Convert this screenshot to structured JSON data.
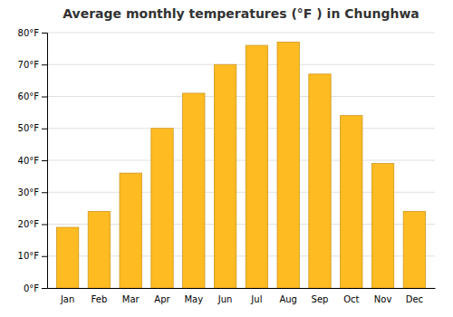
{
  "chart_data": {
    "type": "bar",
    "title": "Average monthly temperatures (°F ) in Chunghwa",
    "categories": [
      "Jan",
      "Feb",
      "Mar",
      "Apr",
      "May",
      "Jun",
      "Jul",
      "Aug",
      "Sep",
      "Oct",
      "Nov",
      "Dec"
    ],
    "values": [
      19,
      24,
      36,
      50,
      61,
      70,
      76,
      77,
      67,
      54,
      39,
      24
    ],
    "color": "#FFBB22",
    "ylim": [
      0,
      80
    ],
    "yticks": [
      {
        "value": 0,
        "label": "0°F"
      },
      {
        "value": 10,
        "label": "10°F"
      },
      {
        "value": 20,
        "label": "20°F"
      },
      {
        "value": 30,
        "label": "30°F"
      },
      {
        "value": 40,
        "label": "40°F"
      },
      {
        "value": 50,
        "label": "50°F"
      },
      {
        "value": 60,
        "label": "60°F"
      },
      {
        "value": 70,
        "label": "70°F"
      },
      {
        "value": 80,
        "label": "80°F"
      }
    ],
    "grid": true
  }
}
